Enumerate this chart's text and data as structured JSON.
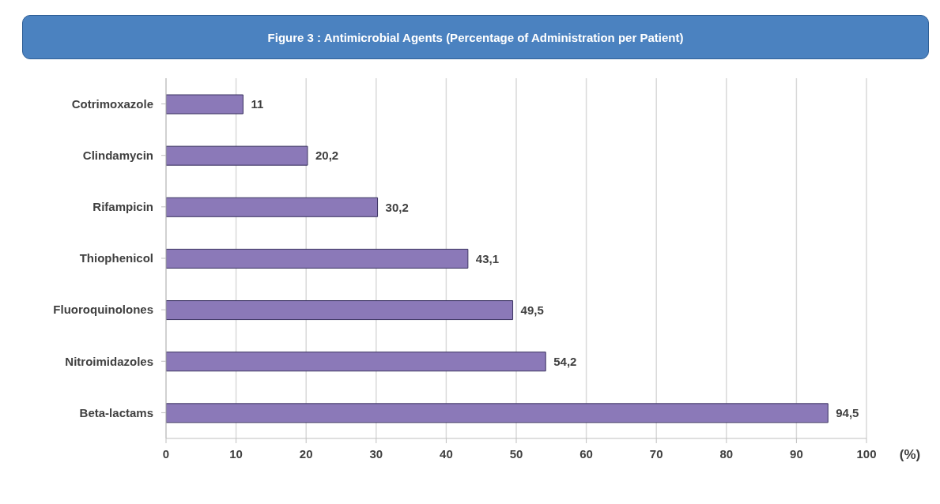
{
  "chart_data": {
    "type": "bar",
    "orientation": "horizontal",
    "title": "Figure 3 : Antimicrobial Agents (Percentage of Administration per Patient)",
    "xlabel": "(%)",
    "categories": [
      "Cotrimoxazole",
      "Clindamycin",
      "Rifampicin",
      "Thiophenicol",
      "Fluoroquinolones",
      "Nitroimidazoles",
      "Beta-lactams"
    ],
    "values": [
      11,
      20.2,
      30.2,
      43.1,
      49.5,
      54.2,
      94.5
    ],
    "value_labels": [
      "11",
      "20,2",
      "30,2",
      "43,1",
      "49,5",
      "54,2",
      "94,5"
    ],
    "color": "#8b79b8",
    "xlim": [
      0,
      100
    ],
    "xticks": [
      0,
      10,
      20,
      30,
      40,
      50,
      60,
      70,
      80,
      90,
      100
    ],
    "grid": "x",
    "legend": false
  }
}
